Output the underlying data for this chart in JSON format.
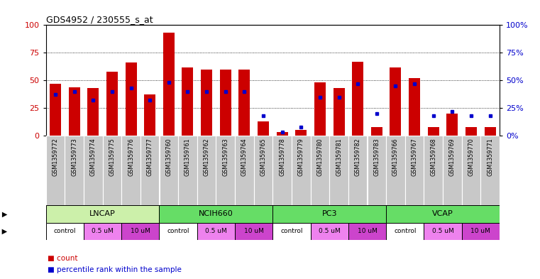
{
  "title": "GDS4952 / 230555_s_at",
  "samples": [
    "GSM1359772",
    "GSM1359773",
    "GSM1359774",
    "GSM1359775",
    "GSM1359776",
    "GSM1359777",
    "GSM1359760",
    "GSM1359761",
    "GSM1359762",
    "GSM1359763",
    "GSM1359764",
    "GSM1359765",
    "GSM1359778",
    "GSM1359779",
    "GSM1359780",
    "GSM1359781",
    "GSM1359782",
    "GSM1359783",
    "GSM1359766",
    "GSM1359767",
    "GSM1359768",
    "GSM1359769",
    "GSM1359770",
    "GSM1359771"
  ],
  "red_values": [
    47,
    44,
    43,
    58,
    66,
    37,
    93,
    62,
    60,
    60,
    60,
    13,
    3,
    5,
    48,
    43,
    67,
    8,
    62,
    52,
    8,
    20,
    8,
    8
  ],
  "blue_values": [
    37,
    40,
    32,
    40,
    43,
    32,
    48,
    40,
    40,
    40,
    40,
    18,
    3,
    8,
    35,
    35,
    47,
    20,
    45,
    47,
    18,
    22,
    18,
    18
  ],
  "cell_lines": [
    "LNCAP",
    "NCIH660",
    "PC3",
    "VCAP"
  ],
  "cell_line_spans": [
    [
      0,
      6
    ],
    [
      6,
      12
    ],
    [
      12,
      18
    ],
    [
      18,
      24
    ]
  ],
  "cell_line_colors": [
    "#ccf0aa",
    "#66dd66",
    "#66dd66",
    "#66dd66"
  ],
  "bar_color": "#cc0000",
  "blue_color": "#0000cc",
  "ylim": [
    0,
    100
  ],
  "yticks": [
    0,
    25,
    50,
    75,
    100
  ],
  "grid_levels": [
    25,
    50,
    75
  ],
  "dose_pattern_per_cell": [
    "control",
    "control",
    "0.5 uM",
    "0.5 uM",
    "10 uM",
    "10 uM"
  ],
  "dose_color_control": "#ffffff",
  "dose_color_half": "#ee82ee",
  "dose_color_ten": "#cc44cc",
  "tick_box_color": "#c8c8c8",
  "plot_bg": "#ffffff",
  "title_fontsize": 9
}
